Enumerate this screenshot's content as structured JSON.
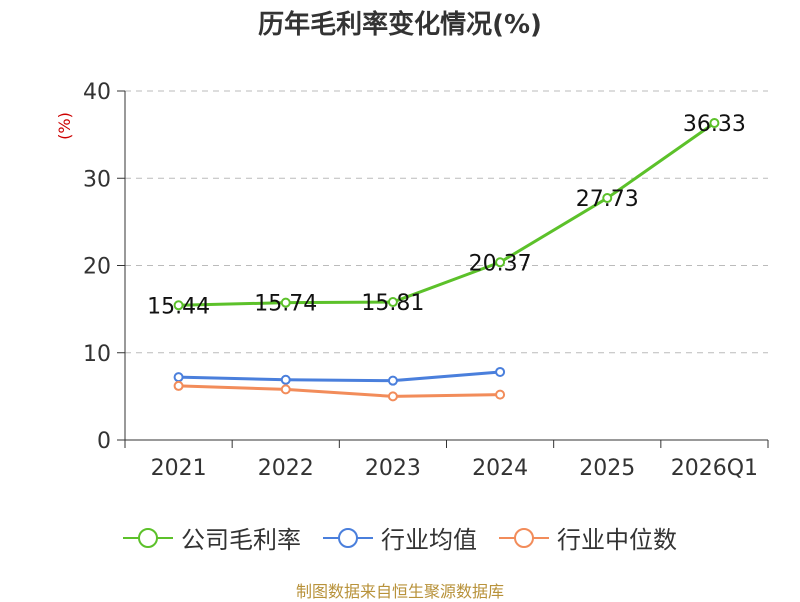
{
  "chart_data": {
    "type": "line",
    "title": "历年毛利率变化情况(%)",
    "ylabel": "(%)",
    "xlabel": "",
    "categories": [
      "2021",
      "2022",
      "2023",
      "2024",
      "2025",
      "2026Q1"
    ],
    "ylim": [
      0,
      40
    ],
    "yticks": [
      0,
      10,
      20,
      30,
      40
    ],
    "grid": true,
    "legend_position": "bottom",
    "series": [
      {
        "name": "公司毛利率",
        "color": "#5cc12a",
        "values": [
          15.44,
          15.74,
          15.81,
          20.37,
          27.73,
          36.33
        ],
        "labels": [
          "15.44",
          "15.74",
          "15.81",
          "20.37",
          "27.73",
          "36.33"
        ]
      },
      {
        "name": "行业均值",
        "color": "#4a7fdc",
        "values": [
          7.2,
          6.9,
          6.8,
          7.8,
          null,
          null
        ]
      },
      {
        "name": "行业中位数",
        "color": "#f28c5a",
        "values": [
          6.2,
          5.8,
          5.0,
          5.2,
          null,
          null
        ]
      }
    ]
  },
  "source": "制图数据来自恒生聚源数据库"
}
